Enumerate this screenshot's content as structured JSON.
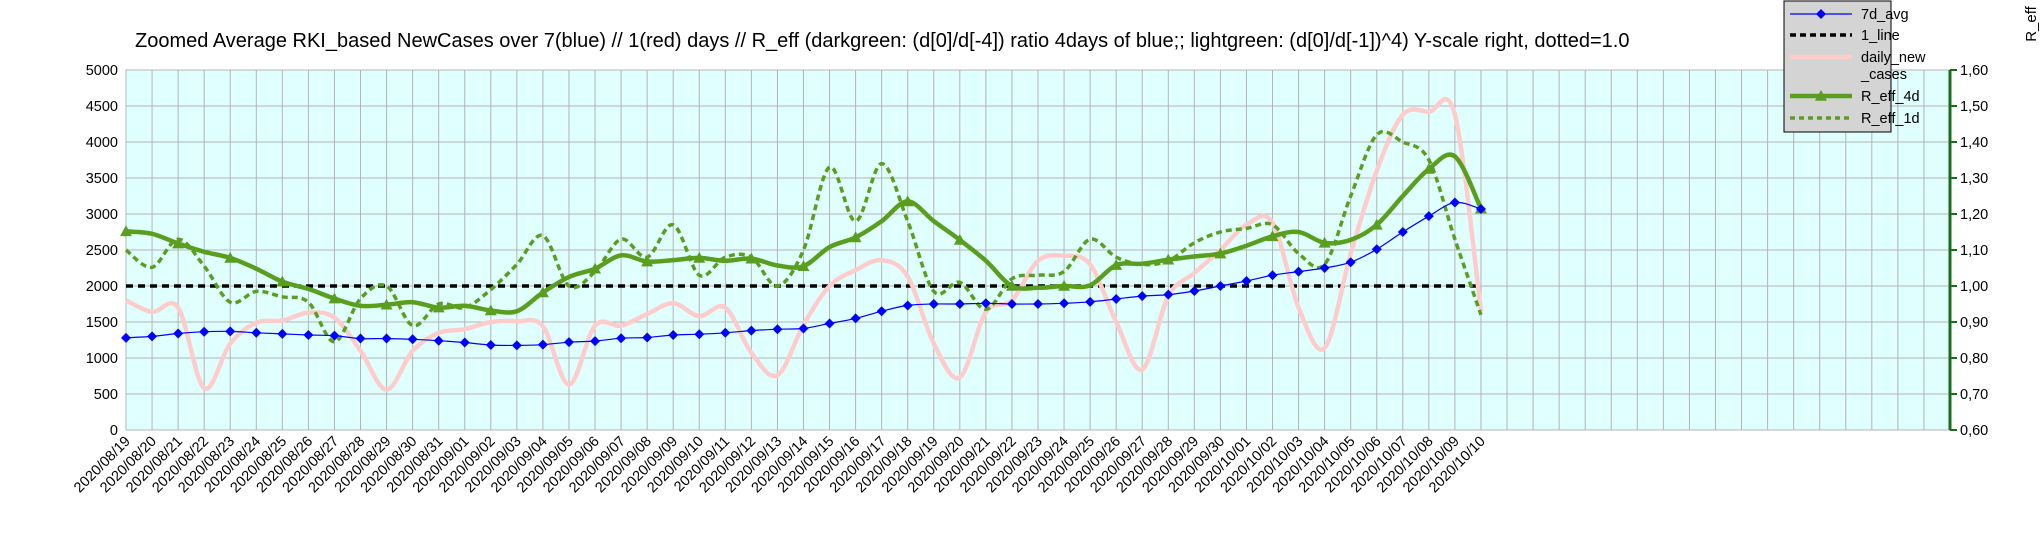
{
  "chart_data": {
    "type": "line",
    "title": "Zoomed Average RKI_based NewCases over 7(blue) // 1(red) days //  R_eff (darkgreen: (d[0]/d[-4]) ratio 4days of blue;; lightgreen: (d[0]/d[-1])^4) Y-scale right, dotted=1.0",
    "ylabel_right": "R_eff",
    "ylim_left": [
      0,
      5000
    ],
    "yticks_left": [
      "0",
      "500",
      "1000",
      "1500",
      "2000",
      "2500",
      "3000",
      "3500",
      "4000",
      "4500",
      "5000"
    ],
    "ylim_right": [
      0.6,
      1.6
    ],
    "yticks_right": [
      "0,60",
      "0,70",
      "0,80",
      "0,90",
      "1,00",
      "1,10",
      "1,20",
      "1,30",
      "1,40",
      "1,50",
      "1,60"
    ],
    "grid": true,
    "legend_position": "top-right",
    "background_color": "#e0ffff",
    "categories": [
      "2020/08/19",
      "2020/08/20",
      "2020/08/21",
      "2020/08/22",
      "2020/08/23",
      "2020/08/24",
      "2020/08/25",
      "2020/08/26",
      "2020/08/27",
      "2020/08/28",
      "2020/08/29",
      "2020/08/30",
      "2020/08/31",
      "2020/09/01",
      "2020/09/02",
      "2020/09/03",
      "2020/09/04",
      "2020/09/05",
      "2020/09/06",
      "2020/09/07",
      "2020/09/08",
      "2020/09/09",
      "2020/09/10",
      "2020/09/11",
      "2020/09/12",
      "2020/09/13",
      "2020/09/14",
      "2020/09/15",
      "2020/09/16",
      "2020/09/17",
      "2020/09/18",
      "2020/09/19",
      "2020/09/20",
      "2020/09/21",
      "2020/09/22",
      "2020/09/23",
      "2020/09/24",
      "2020/09/25",
      "2020/09/26",
      "2020/09/27",
      "2020/09/28",
      "2020/09/29",
      "2020/09/30",
      "2020/10/01",
      "2020/10/02",
      "2020/10/03",
      "2020/10/04",
      "2020/10/05",
      "2020/10/06",
      "2020/10/07",
      "2020/10/08",
      "2020/10/09",
      "2020/10/10"
    ],
    "series": [
      {
        "name": "7d_avg",
        "axis": "left",
        "color": "#0000ff",
        "style": "solid-diamond",
        "values": [
          1280,
          1300,
          1340,
          1365,
          1370,
          1350,
          1335,
          1320,
          1310,
          1270,
          1270,
          1260,
          1240,
          1215,
          1180,
          1175,
          1185,
          1220,
          1235,
          1275,
          1285,
          1320,
          1330,
          1350,
          1380,
          1400,
          1410,
          1480,
          1550,
          1650,
          1730,
          1750,
          1750,
          1760,
          1750,
          1750,
          1760,
          1780,
          1820,
          1860,
          1880,
          1930,
          2000,
          2070,
          2150,
          2200,
          2250,
          2330,
          2510,
          2750,
          2970,
          3160,
          3070
        ]
      },
      {
        "name": "1_line",
        "axis": "left",
        "color": "#000000",
        "style": "dashed",
        "values": [
          2000,
          2000,
          2000,
          2000,
          2000,
          2000,
          2000,
          2000,
          2000,
          2000,
          2000,
          2000,
          2000,
          2000,
          2000,
          2000,
          2000,
          2000,
          2000,
          2000,
          2000,
          2000,
          2000,
          2000,
          2000,
          2000,
          2000,
          2000,
          2000,
          2000,
          2000,
          2000,
          2000,
          2000,
          2000,
          2000,
          2000,
          2000,
          2000,
          2000,
          2000,
          2000,
          2000,
          2000,
          2000,
          2000,
          2000,
          2000,
          2000,
          2000,
          2000,
          2000,
          2000
        ]
      },
      {
        "name": "daily_new _cases",
        "axis": "left",
        "color": "#ffcccc",
        "style": "thick-solid",
        "values": [
          1800,
          1640,
          1700,
          580,
          1200,
          1490,
          1520,
          1630,
          1560,
          1100,
          560,
          1100,
          1350,
          1400,
          1500,
          1510,
          1440,
          630,
          1450,
          1450,
          1610,
          1760,
          1580,
          1700,
          1070,
          760,
          1460,
          2000,
          2220,
          2360,
          2130,
          1200,
          730,
          1640,
          1800,
          2350,
          2420,
          2300,
          1500,
          840,
          1860,
          2180,
          2500,
          2850,
          2880,
          1700,
          1140,
          2450,
          3600,
          4380,
          4420,
          4380,
          1650
        ]
      },
      {
        "name": "R_eff_4d",
        "axis": "right",
        "color": "#5a9e1f",
        "style": "thick-triangle",
        "values": [
          1.152,
          1.145,
          1.118,
          1.095,
          1.078,
          1.048,
          1.012,
          0.992,
          0.965,
          0.945,
          0.948,
          0.955,
          0.94,
          0.945,
          0.932,
          0.93,
          0.982,
          1.025,
          1.048,
          1.085,
          1.068,
          1.072,
          1.078,
          1.07,
          1.076,
          1.057,
          1.055,
          1.108,
          1.135,
          1.18,
          1.235,
          1.18,
          1.128,
          1.07,
          1.0,
          0.995,
          1.0,
          1.002,
          1.058,
          1.062,
          1.073,
          1.082,
          1.09,
          1.112,
          1.138,
          1.15,
          1.12,
          1.128,
          1.17,
          1.25,
          1.325,
          1.36,
          1.215
        ]
      },
      {
        "name": "R_eff_1d",
        "axis": "right",
        "color": "#5a9e1f",
        "style": "dotted",
        "values": [
          1.1,
          1.052,
          1.13,
          1.055,
          0.955,
          0.985,
          0.97,
          0.955,
          0.845,
          0.965,
          1.0,
          0.89,
          0.95,
          0.94,
          0.99,
          1.06,
          1.14,
          1.0,
          1.04,
          1.13,
          1.08,
          1.17,
          1.03,
          1.08,
          1.08,
          1.0,
          1.1,
          1.33,
          1.18,
          1.34,
          1.18,
          0.985,
          1.01,
          0.935,
          1.02,
          1.03,
          1.04,
          1.13,
          1.08,
          1.06,
          1.07,
          1.12,
          1.15,
          1.16,
          1.17,
          1.09,
          1.06,
          1.25,
          1.42,
          1.4,
          1.35,
          1.13,
          0.92
        ]
      }
    ]
  }
}
